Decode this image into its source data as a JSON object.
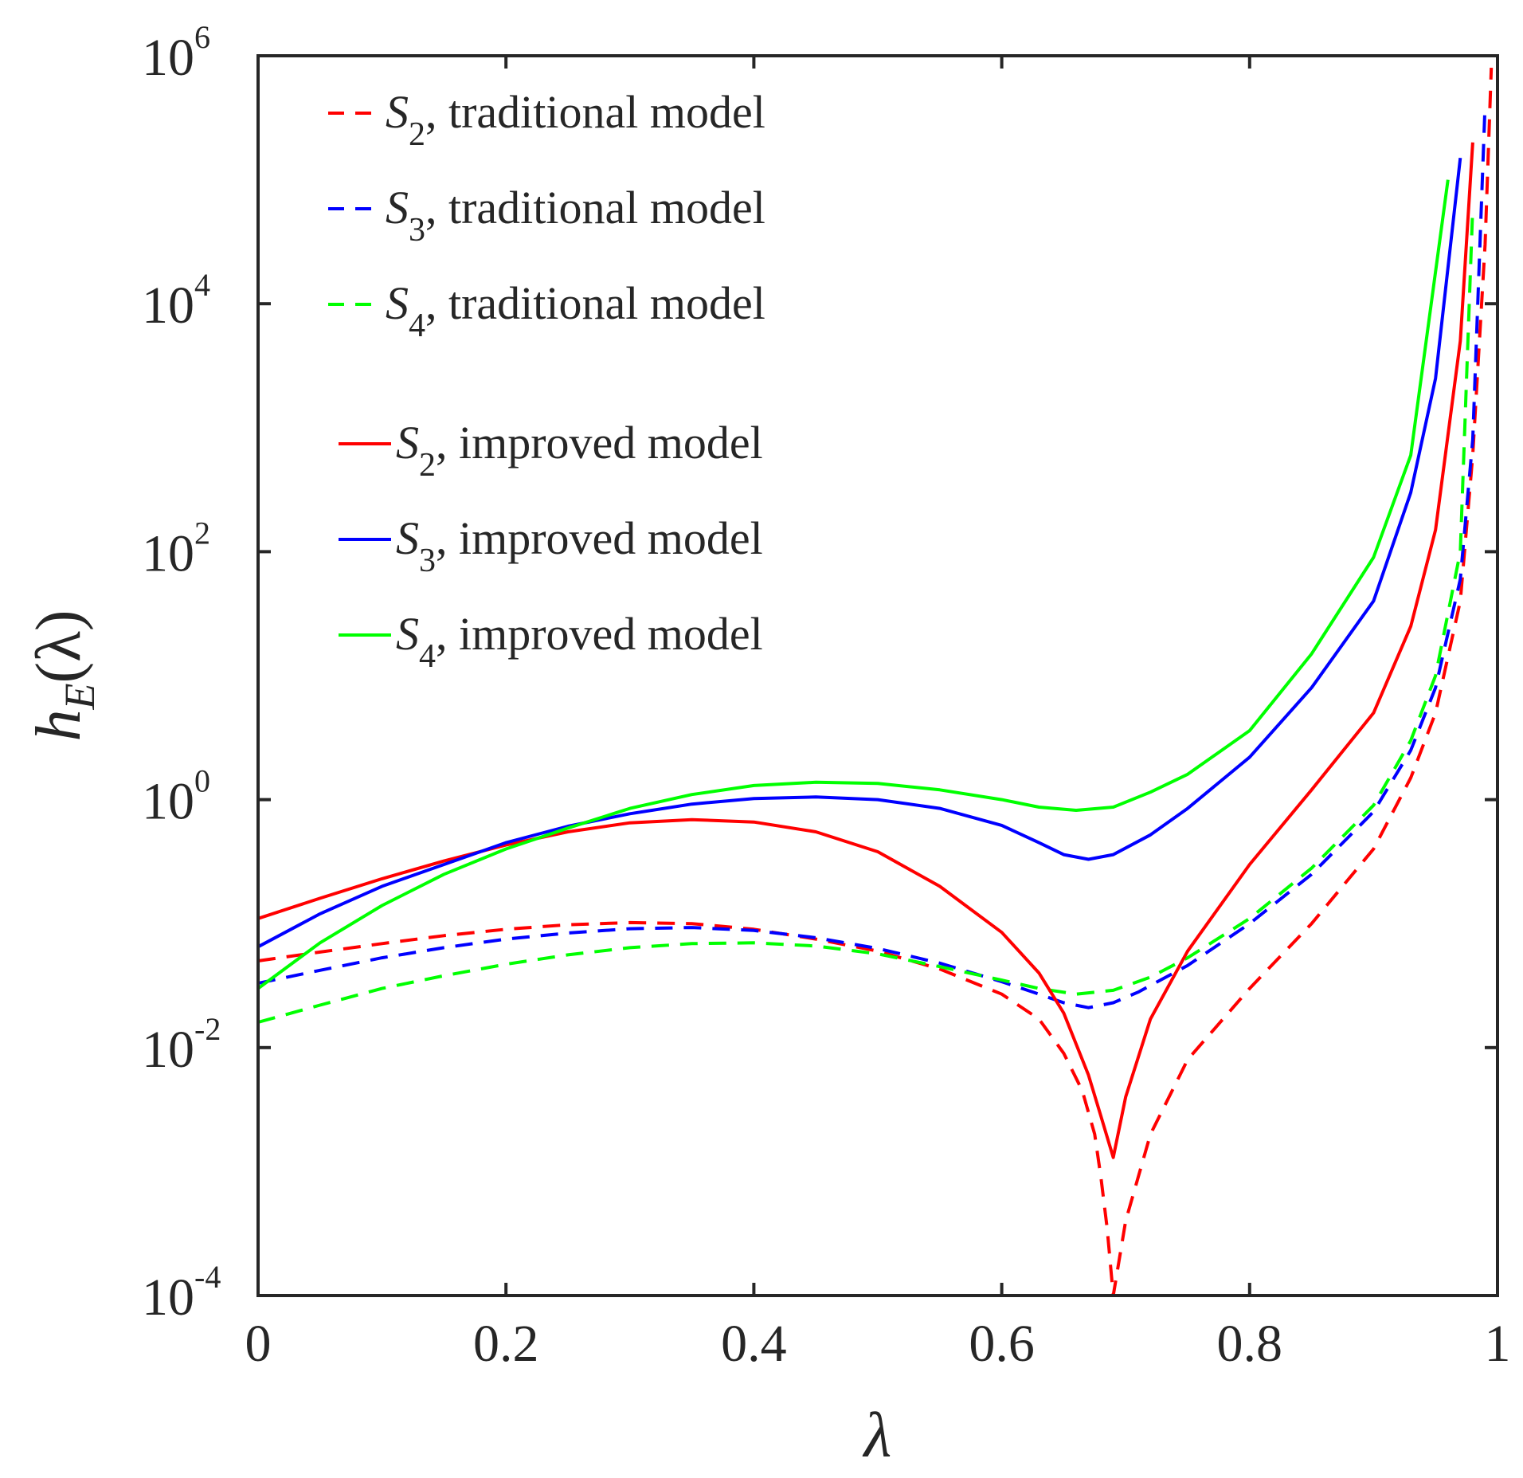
{
  "chart_data": {
    "type": "line",
    "xlabel": "λ",
    "ylabel": {
      "base": "h",
      "sub": "E",
      "arg": "(λ)"
    },
    "xlim": [
      0,
      1
    ],
    "ylim": [
      0.0001,
      1000000
    ],
    "yscale": "log",
    "grid": false,
    "legend_position": "top-left",
    "x_ticks": [
      "0",
      "0.2",
      "0.4",
      "0.6",
      "0.8",
      "1"
    ],
    "y_ticks": [
      {
        "base": "10",
        "exp": "-4"
      },
      {
        "base": "10",
        "exp": "-2"
      },
      {
        "base": "10",
        "exp": "0"
      },
      {
        "base": "10",
        "exp": "2"
      },
      {
        "base": "10",
        "exp": "4"
      },
      {
        "base": "10",
        "exp": "6"
      }
    ],
    "series": [
      {
        "name": "S2, traditional model",
        "symbol": "S",
        "sub": "2",
        "label": ", traditional model",
        "color": "#ff0000",
        "style": "dashed",
        "x": [
          0,
          0.05,
          0.1,
          0.15,
          0.2,
          0.25,
          0.3,
          0.35,
          0.4,
          0.45,
          0.5,
          0.55,
          0.6,
          0.63,
          0.65,
          0.665,
          0.675,
          0.68,
          0.685,
          0.69,
          0.7,
          0.72,
          0.75,
          0.8,
          0.85,
          0.9,
          0.93,
          0.95,
          0.97,
          0.98,
          0.99,
          0.995
        ],
        "y": [
          0.05,
          0.059,
          0.069,
          0.08,
          0.09,
          0.098,
          0.102,
          0.1,
          0.09,
          0.075,
          0.06,
          0.043,
          0.027,
          0.017,
          0.009,
          0.0045,
          0.002,
          0.0009,
          0.00035,
          0.0001,
          0.0004,
          0.002,
          0.008,
          0.03,
          0.1,
          0.4,
          1.5,
          5,
          40,
          600,
          30000,
          800000
        ]
      },
      {
        "name": "S3, traditional model",
        "symbol": "S",
        "sub": "3",
        "label": ", traditional model",
        "color": "#0000ff",
        "style": "dashed",
        "x": [
          0,
          0.05,
          0.1,
          0.15,
          0.2,
          0.25,
          0.3,
          0.35,
          0.4,
          0.45,
          0.5,
          0.55,
          0.6,
          0.63,
          0.65,
          0.67,
          0.69,
          0.71,
          0.75,
          0.8,
          0.85,
          0.9,
          0.93,
          0.95,
          0.97,
          0.98,
          0.99
        ],
        "y": [
          0.033,
          0.042,
          0.053,
          0.064,
          0.075,
          0.084,
          0.091,
          0.093,
          0.088,
          0.077,
          0.063,
          0.048,
          0.034,
          0.027,
          0.023,
          0.021,
          0.023,
          0.028,
          0.046,
          0.1,
          0.25,
          0.8,
          2.5,
          8,
          60,
          800,
          400000
        ]
      },
      {
        "name": "S4, traditional model",
        "symbol": "S",
        "sub": "4",
        "label": ", traditional model",
        "color": "#00ff00",
        "style": "dashed",
        "x": [
          0,
          0.05,
          0.1,
          0.15,
          0.2,
          0.25,
          0.3,
          0.35,
          0.4,
          0.45,
          0.5,
          0.55,
          0.6,
          0.63,
          0.66,
          0.69,
          0.72,
          0.75,
          0.8,
          0.85,
          0.9,
          0.93,
          0.95,
          0.97,
          0.98
        ],
        "y": [
          0.016,
          0.022,
          0.03,
          0.038,
          0.047,
          0.056,
          0.064,
          0.069,
          0.07,
          0.066,
          0.057,
          0.045,
          0.035,
          0.03,
          0.027,
          0.029,
          0.037,
          0.053,
          0.11,
          0.28,
          0.9,
          3,
          10,
          100,
          60000
        ]
      },
      {
        "name": "S2, improved model",
        "symbol": "S",
        "sub": "2",
        "label": ", improved model",
        "color": "#ff0000",
        "style": "solid",
        "x": [
          0,
          0.05,
          0.1,
          0.15,
          0.2,
          0.25,
          0.3,
          0.35,
          0.4,
          0.45,
          0.5,
          0.55,
          0.6,
          0.63,
          0.65,
          0.67,
          0.68,
          0.69,
          0.7,
          0.72,
          0.75,
          0.8,
          0.85,
          0.9,
          0.93,
          0.95,
          0.97,
          0.98
        ],
        "y": [
          0.11,
          0.16,
          0.23,
          0.32,
          0.43,
          0.55,
          0.65,
          0.69,
          0.66,
          0.55,
          0.38,
          0.2,
          0.085,
          0.04,
          0.019,
          0.006,
          0.0028,
          0.0013,
          0.004,
          0.017,
          0.06,
          0.3,
          1.2,
          5,
          25,
          150,
          5000,
          200000
        ]
      },
      {
        "name": "S3, improved model",
        "symbol": "S",
        "sub": "3",
        "label": ", improved model",
        "color": "#0000ff",
        "style": "solid",
        "x": [
          0,
          0.05,
          0.1,
          0.15,
          0.2,
          0.25,
          0.3,
          0.35,
          0.4,
          0.45,
          0.5,
          0.55,
          0.6,
          0.63,
          0.65,
          0.67,
          0.69,
          0.72,
          0.75,
          0.8,
          0.85,
          0.9,
          0.93,
          0.95,
          0.97
        ],
        "y": [
          0.065,
          0.12,
          0.2,
          0.3,
          0.45,
          0.61,
          0.77,
          0.92,
          1.02,
          1.05,
          1.0,
          0.85,
          0.62,
          0.45,
          0.36,
          0.33,
          0.36,
          0.52,
          0.85,
          2.2,
          8,
          40,
          300,
          2500,
          150000
        ]
      },
      {
        "name": "S4, improved model",
        "symbol": "S",
        "sub": "4",
        "label": ", improved model",
        "color": "#00ff00",
        "style": "solid",
        "x": [
          0,
          0.05,
          0.1,
          0.15,
          0.2,
          0.25,
          0.3,
          0.35,
          0.4,
          0.45,
          0.5,
          0.55,
          0.6,
          0.63,
          0.66,
          0.69,
          0.72,
          0.75,
          0.8,
          0.85,
          0.9,
          0.93,
          0.96
        ],
        "y": [
          0.03,
          0.07,
          0.14,
          0.25,
          0.4,
          0.59,
          0.85,
          1.1,
          1.3,
          1.38,
          1.35,
          1.2,
          1.0,
          0.87,
          0.82,
          0.87,
          1.15,
          1.6,
          3.6,
          15,
          90,
          600,
          100000
        ]
      }
    ],
    "legend_order": [
      0,
      1,
      2,
      3,
      4,
      5
    ]
  }
}
